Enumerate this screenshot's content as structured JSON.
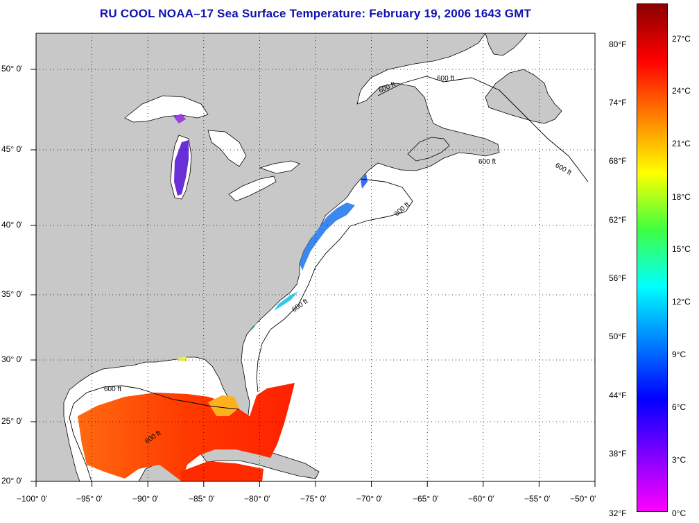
{
  "map": {
    "title": "RU COOL  NOAA–17  Sea Surface Temperature:  February 19, 2006 1643 GMT",
    "lon_ticks": [
      "−100° 0'",
      "−95° 0'",
      "−90° 0'",
      "−85° 0'",
      "−80° 0'",
      "−75° 0'",
      "−70° 0'",
      "−65° 0'",
      "−60° 0'",
      "−55° 0'",
      "−50° 0'"
    ],
    "lat_ticks": [
      "50° 0'",
      "45° 0'",
      "40° 0'",
      "35° 0'",
      "30° 0'",
      "25° 0'",
      "20° 0'"
    ],
    "contour_labels": [
      "600 ft",
      "600 ft",
      "600 ft",
      "600 ft",
      "600 ft",
      "600 ft",
      "600 ft",
      "600 ft"
    ],
    "land_color": "#c8c8c8",
    "no_data_color": "#ffffff",
    "grid": true
  },
  "colorbar": {
    "fahrenheit_labels": [
      "80°F",
      "74°F",
      "68°F",
      "62°F",
      "56°F",
      "50°F",
      "44°F",
      "38°F",
      "32°F"
    ],
    "celsius_labels": [
      "27°C",
      "24°C",
      "21°C",
      "18°C",
      "15°C",
      "12°C",
      "9°C",
      "6°C",
      "3°C",
      "0°C"
    ],
    "colors_top_to_bottom": [
      "#8b0000",
      "#ff0000",
      "#ff8000",
      "#ffff00",
      "#40ff40",
      "#00ffff",
      "#0080ff",
      "#0000ff",
      "#8000ff",
      "#ff00ff"
    ]
  }
}
